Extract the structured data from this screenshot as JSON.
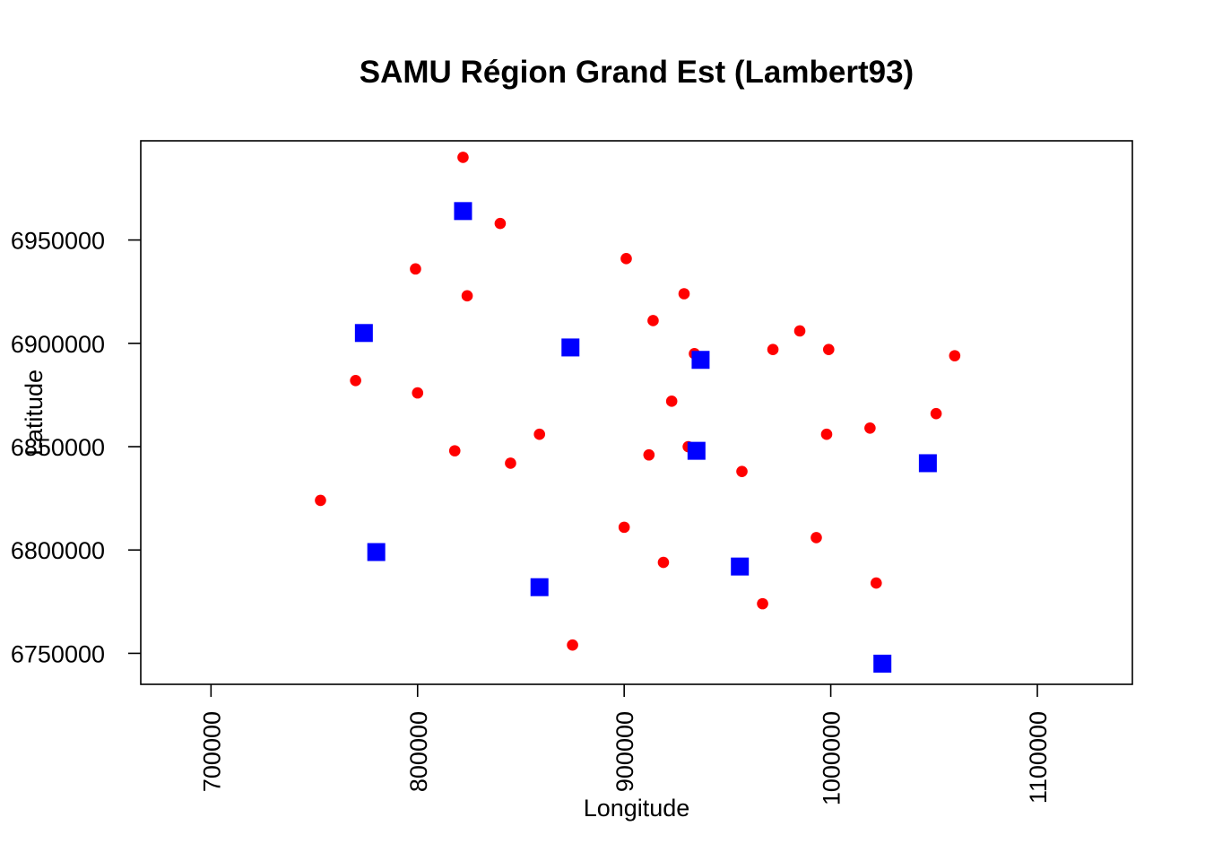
{
  "chart_data": {
    "type": "scatter",
    "title": "SAMU Région Grand Est (Lambert93)",
    "xlabel": "Longitude",
    "ylabel": "Latitude",
    "xlim": [
      666000,
      1146000
    ],
    "ylim": [
      6735000,
      6998000
    ],
    "x_ticks": [
      700000,
      800000,
      900000,
      1000000,
      1100000
    ],
    "x_tick_labels": [
      "700000",
      "800000",
      "900000",
      "1000000",
      "1100000"
    ],
    "y_ticks": [
      6750000,
      6800000,
      6850000,
      6900000,
      6950000
    ],
    "y_tick_labels": [
      "6750000",
      "6800000",
      "6850000",
      "6900000",
      "6950000"
    ],
    "grid": false,
    "series": [
      {
        "marker": "circle",
        "color": "#ff0000",
        "points": [
          [
            822000,
            6990000
          ],
          [
            840000,
            6958000
          ],
          [
            799000,
            6936000
          ],
          [
            824000,
            6923000
          ],
          [
            901000,
            6941000
          ],
          [
            929000,
            6924000
          ],
          [
            914000,
            6911000
          ],
          [
            985000,
            6906000
          ],
          [
            934000,
            6895000
          ],
          [
            972000,
            6897000
          ],
          [
            999000,
            6897000
          ],
          [
            1060000,
            6894000
          ],
          [
            770000,
            6882000
          ],
          [
            800000,
            6876000
          ],
          [
            923000,
            6872000
          ],
          [
            1051000,
            6866000
          ],
          [
            859000,
            6856000
          ],
          [
            998000,
            6856000
          ],
          [
            1019000,
            6859000
          ],
          [
            818000,
            6848000
          ],
          [
            931000,
            6850000
          ],
          [
            912000,
            6846000
          ],
          [
            845000,
            6842000
          ],
          [
            957000,
            6838000
          ],
          [
            753000,
            6824000
          ],
          [
            900000,
            6811000
          ],
          [
            993000,
            6806000
          ],
          [
            919000,
            6794000
          ],
          [
            1022000,
            6784000
          ],
          [
            967000,
            6774000
          ],
          [
            875000,
            6754000
          ]
        ]
      },
      {
        "marker": "square",
        "color": "#0000ff",
        "points": [
          [
            822000,
            6964000
          ],
          [
            774000,
            6905000
          ],
          [
            874000,
            6898000
          ],
          [
            937000,
            6892000
          ],
          [
            935000,
            6848000
          ],
          [
            1047000,
            6842000
          ],
          [
            780000,
            6799000
          ],
          [
            859000,
            6782000
          ],
          [
            956000,
            6792000
          ],
          [
            1025000,
            6745000
          ]
        ]
      }
    ]
  }
}
